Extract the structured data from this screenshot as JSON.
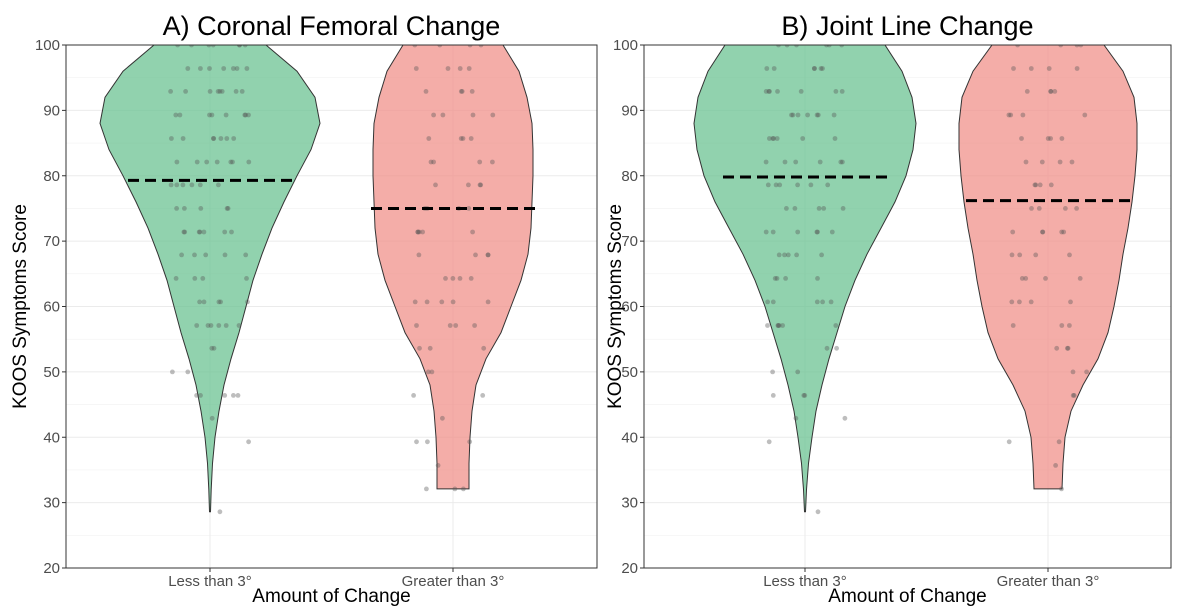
{
  "chart_data": [
    {
      "type": "violin",
      "title": "A) Coronal Femoral Change",
      "xlabel": "Amount of Change",
      "ylabel": "KOOS Symptoms Score",
      "ylim": [
        20,
        100
      ],
      "yticks": [
        20,
        30,
        40,
        50,
        60,
        70,
        80,
        90,
        100
      ],
      "grid": true,
      "categories": [
        "Less than 3°",
        "Greater than 3°"
      ],
      "series": [
        {
          "category": "Less than 3°",
          "color": "#66c08f",
          "median": 79.3,
          "range": [
            28.6,
            100
          ],
          "density": [
            [
              28.6,
              0.5
            ],
            [
              32,
              1.2
            ],
            [
              36,
              2.5
            ],
            [
              40,
              5
            ],
            [
              44,
              9
            ],
            [
              48,
              14
            ],
            [
              52,
              21
            ],
            [
              56,
              29
            ],
            [
              60,
              36
            ],
            [
              64,
              43
            ],
            [
              68,
              52
            ],
            [
              72,
              62
            ],
            [
              76,
              74
            ],
            [
              80,
              87
            ],
            [
              84,
              101
            ],
            [
              88,
              110
            ],
            [
              92,
              105
            ],
            [
              96,
              87
            ],
            [
              100,
              56
            ]
          ],
          "points": [
            28.6,
            39.3,
            42.9,
            46.4,
            46.4,
            46.4,
            46.4,
            46.4,
            50,
            50,
            53.6,
            53.6,
            57.1,
            57.1,
            57.1,
            57.1,
            57.1,
            57.1,
            60.7,
            60.7,
            60.7,
            60.7,
            60.7,
            64.3,
            64.3,
            64.3,
            64.3,
            67.9,
            67.9,
            67.9,
            67.9,
            67.9,
            71.4,
            71.4,
            71.4,
            71.4,
            71.4,
            71.4,
            71.4,
            75,
            75,
            75,
            75,
            75,
            78.6,
            78.6,
            78.6,
            78.6,
            78.6,
            78.6,
            82.1,
            82.1,
            82.1,
            82.1,
            82.1,
            82.1,
            82.1,
            85.7,
            85.7,
            85.7,
            85.7,
            85.7,
            85.7,
            85.7,
            89.3,
            89.3,
            89.3,
            89.3,
            89.3,
            89.3,
            89.3,
            89.3,
            92.9,
            92.9,
            92.9,
            92.9,
            92.9,
            92.9,
            92.9,
            92.9,
            96.4,
            96.4,
            96.4,
            96.4,
            96.4,
            96.4,
            96.4,
            100,
            100,
            100,
            100,
            100,
            100,
            100
          ]
        },
        {
          "category": "Greater than 3°",
          "color": "#f08d87",
          "median": 75,
          "range": [
            32.1,
            100
          ],
          "density": [
            [
              32.1,
              16
            ],
            [
              36,
              16
            ],
            [
              40,
              17
            ],
            [
              44,
              19
            ],
            [
              48,
              23
            ],
            [
              52,
              33
            ],
            [
              56,
              48
            ],
            [
              60,
              58
            ],
            [
              64,
              68
            ],
            [
              68,
              75
            ],
            [
              72,
              78
            ],
            [
              76,
              79
            ],
            [
              80,
              80
            ],
            [
              84,
              80
            ],
            [
              88,
              79
            ],
            [
              92,
              74
            ],
            [
              96,
              66
            ],
            [
              100,
              50
            ]
          ],
          "points": [
            32.1,
            32.1,
            32.1,
            35.7,
            39.3,
            39.3,
            39.3,
            42.9,
            46.4,
            46.4,
            50,
            50,
            53.6,
            53.6,
            53.6,
            57.1,
            57.1,
            57.1,
            57.1,
            60.7,
            60.7,
            60.7,
            60.7,
            60.7,
            64.3,
            64.3,
            64.3,
            64.3,
            67.9,
            67.9,
            67.9,
            67.9,
            71.4,
            71.4,
            71.4,
            71.4,
            71.4,
            75,
            75,
            75,
            75,
            78.6,
            78.6,
            78.6,
            78.6,
            82.1,
            82.1,
            82.1,
            82.1,
            85.7,
            85.7,
            85.7,
            85.7,
            89.3,
            89.3,
            89.3,
            89.3,
            92.9,
            92.9,
            92.9,
            92.9,
            96.4,
            96.4,
            96.4,
            96.4,
            100,
            100,
            100,
            100
          ]
        }
      ]
    },
    {
      "type": "violin",
      "title": "B) Joint Line Change",
      "xlabel": "Amount of Change",
      "ylabel": "KOOS Symptoms Score",
      "ylim": [
        20,
        100
      ],
      "yticks": [
        20,
        30,
        40,
        50,
        60,
        70,
        80,
        90,
        100
      ],
      "grid": true,
      "categories": [
        "Less than 3°",
        "Greater than 3°"
      ],
      "series": [
        {
          "category": "Less than 3°",
          "color": "#66c08f",
          "median": 79.8,
          "range": [
            28.6,
            100
          ],
          "density": [
            [
              28.6,
              0.5
            ],
            [
              32,
              1.5
            ],
            [
              36,
              3.5
            ],
            [
              40,
              7
            ],
            [
              44,
              11
            ],
            [
              48,
              17
            ],
            [
              52,
              24
            ],
            [
              56,
              32
            ],
            [
              60,
              40
            ],
            [
              64,
              50
            ],
            [
              68,
              62
            ],
            [
              72,
              76
            ],
            [
              76,
              90
            ],
            [
              80,
              101
            ],
            [
              84,
              108
            ],
            [
              88,
              111
            ],
            [
              92,
              107
            ],
            [
              96,
              97
            ],
            [
              100,
              80
            ]
          ],
          "points": [
            28.6,
            39.3,
            42.9,
            42.9,
            46.4,
            46.4,
            46.4,
            50,
            50,
            53.6,
            53.6,
            57.1,
            57.1,
            57.1,
            57.1,
            57.1,
            57.1,
            60.7,
            60.7,
            60.7,
            60.7,
            60.7,
            64.3,
            64.3,
            64.3,
            64.3,
            67.9,
            67.9,
            67.9,
            67.9,
            67.9,
            71.4,
            71.4,
            71.4,
            71.4,
            71.4,
            71.4,
            75,
            75,
            75,
            75,
            75,
            78.6,
            78.6,
            78.6,
            78.6,
            78.6,
            78.6,
            82.1,
            82.1,
            82.1,
            82.1,
            82.1,
            82.1,
            85.7,
            85.7,
            85.7,
            85.7,
            85.7,
            85.7,
            89.3,
            89.3,
            89.3,
            89.3,
            89.3,
            89.3,
            89.3,
            92.9,
            92.9,
            92.9,
            92.9,
            92.9,
            92.9,
            92.9,
            96.4,
            96.4,
            96.4,
            96.4,
            96.4,
            96.4,
            100,
            100,
            100,
            100,
            100,
            100
          ]
        },
        {
          "category": "Greater than 3°",
          "color": "#f08d87",
          "median": 76.2,
          "range": [
            32.1,
            100
          ],
          "density": [
            [
              32.1,
              14
            ],
            [
              36,
              15
            ],
            [
              40,
              17
            ],
            [
              44,
              23
            ],
            [
              48,
              35
            ],
            [
              52,
              50
            ],
            [
              56,
              60
            ],
            [
              60,
              66
            ],
            [
              64,
              71
            ],
            [
              68,
              75
            ],
            [
              72,
              80
            ],
            [
              76,
              84
            ],
            [
              80,
              87
            ],
            [
              84,
              89
            ],
            [
              88,
              89
            ],
            [
              92,
              86
            ],
            [
              96,
              75
            ],
            [
              100,
              56
            ]
          ],
          "points": [
            32.1,
            35.7,
            39.3,
            39.3,
            46.4,
            46.4,
            50,
            50,
            53.6,
            53.6,
            53.6,
            57.1,
            57.1,
            57.1,
            60.7,
            60.7,
            60.7,
            60.7,
            64.3,
            64.3,
            64.3,
            64.3,
            67.9,
            67.9,
            67.9,
            67.9,
            71.4,
            71.4,
            71.4,
            71.4,
            71.4,
            75,
            75,
            75,
            75,
            78.6,
            78.6,
            78.6,
            78.6,
            82.1,
            82.1,
            82.1,
            82.1,
            85.7,
            85.7,
            85.7,
            85.7,
            89.3,
            89.3,
            89.3,
            89.3,
            92.9,
            92.9,
            92.9,
            92.9,
            96.4,
            96.4,
            96.4,
            96.4,
            100,
            100,
            100,
            100
          ]
        }
      ]
    }
  ]
}
